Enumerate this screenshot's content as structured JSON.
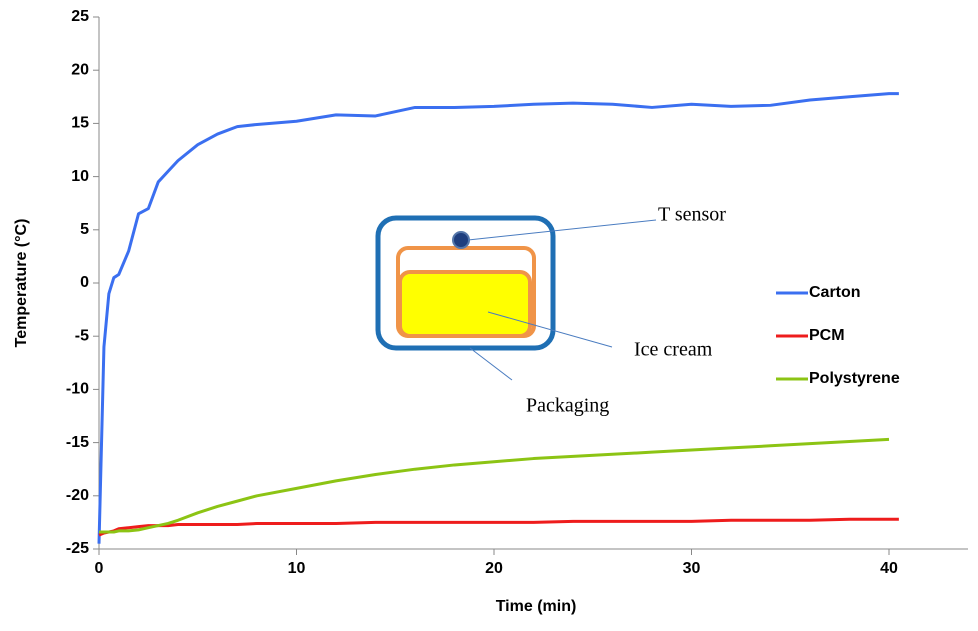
{
  "chart_data": {
    "type": "line",
    "x_label": "Time (min)",
    "y_label": "Temperature (°C)",
    "x": [
      0,
      0.25,
      0.5,
      0.75,
      1,
      1.5,
      2,
      2.5,
      3,
      3.5,
      4,
      5,
      6,
      7,
      8,
      10,
      12,
      14,
      16,
      18,
      20,
      22,
      24,
      26,
      28,
      30,
      32,
      34,
      36,
      38,
      40,
      40.5
    ],
    "series": [
      {
        "name": "Carton",
        "color": "#3b6ff0",
        "values": [
          -24.5,
          -6,
          -1,
          0.5,
          0.8,
          3,
          6.5,
          7,
          9.5,
          10.5,
          11.5,
          13,
          14,
          14.7,
          14.9,
          15.2,
          15.8,
          15.7,
          16.5,
          16.5,
          16.6,
          16.8,
          16.9,
          16.8,
          16.5,
          16.8,
          16.6,
          16.7,
          17.2,
          17.5,
          17.8,
          17.8
        ]
      },
      {
        "name": "PCM",
        "color": "#ee1c1c",
        "values": [
          -23.7,
          -23.5,
          -23.4,
          -23.3,
          -23.1,
          -23,
          -22.9,
          -22.8,
          -22.8,
          -22.8,
          -22.7,
          -22.7,
          -22.7,
          -22.7,
          -22.6,
          -22.6,
          -22.6,
          -22.5,
          -22.5,
          -22.5,
          -22.5,
          -22.5,
          -22.4,
          -22.4,
          -22.4,
          -22.4,
          -22.3,
          -22.3,
          -22.3,
          -22.2,
          -22.2,
          -22.2
        ]
      },
      {
        "name": "Polystyrene",
        "color": "#8cc414",
        "values": [
          -23.4,
          -23.4,
          -23.4,
          -23.4,
          -23.3,
          -23.3,
          -23.2,
          -23,
          -22.8,
          -22.6,
          -22.3,
          -21.6,
          -21,
          -20.5,
          -20,
          -19.3,
          -18.6,
          -18,
          -17.5,
          -17.1,
          -16.8,
          -16.5,
          -16.3,
          -16.1,
          -15.9,
          -15.7,
          -15.5,
          -15.3,
          -15.1,
          -14.9,
          -14.7,
          null
        ]
      }
    ],
    "xlim": [
      0,
      44
    ],
    "xticks": [
      0,
      10,
      20,
      30,
      40
    ],
    "ylim": [
      -25,
      25
    ],
    "yticks": [
      -25,
      -20,
      -15,
      -10,
      -5,
      0,
      5,
      10,
      15,
      20,
      25
    ],
    "legend": "right",
    "annotations": [
      "T sensor",
      "Ice cream",
      "Packaging"
    ]
  }
}
